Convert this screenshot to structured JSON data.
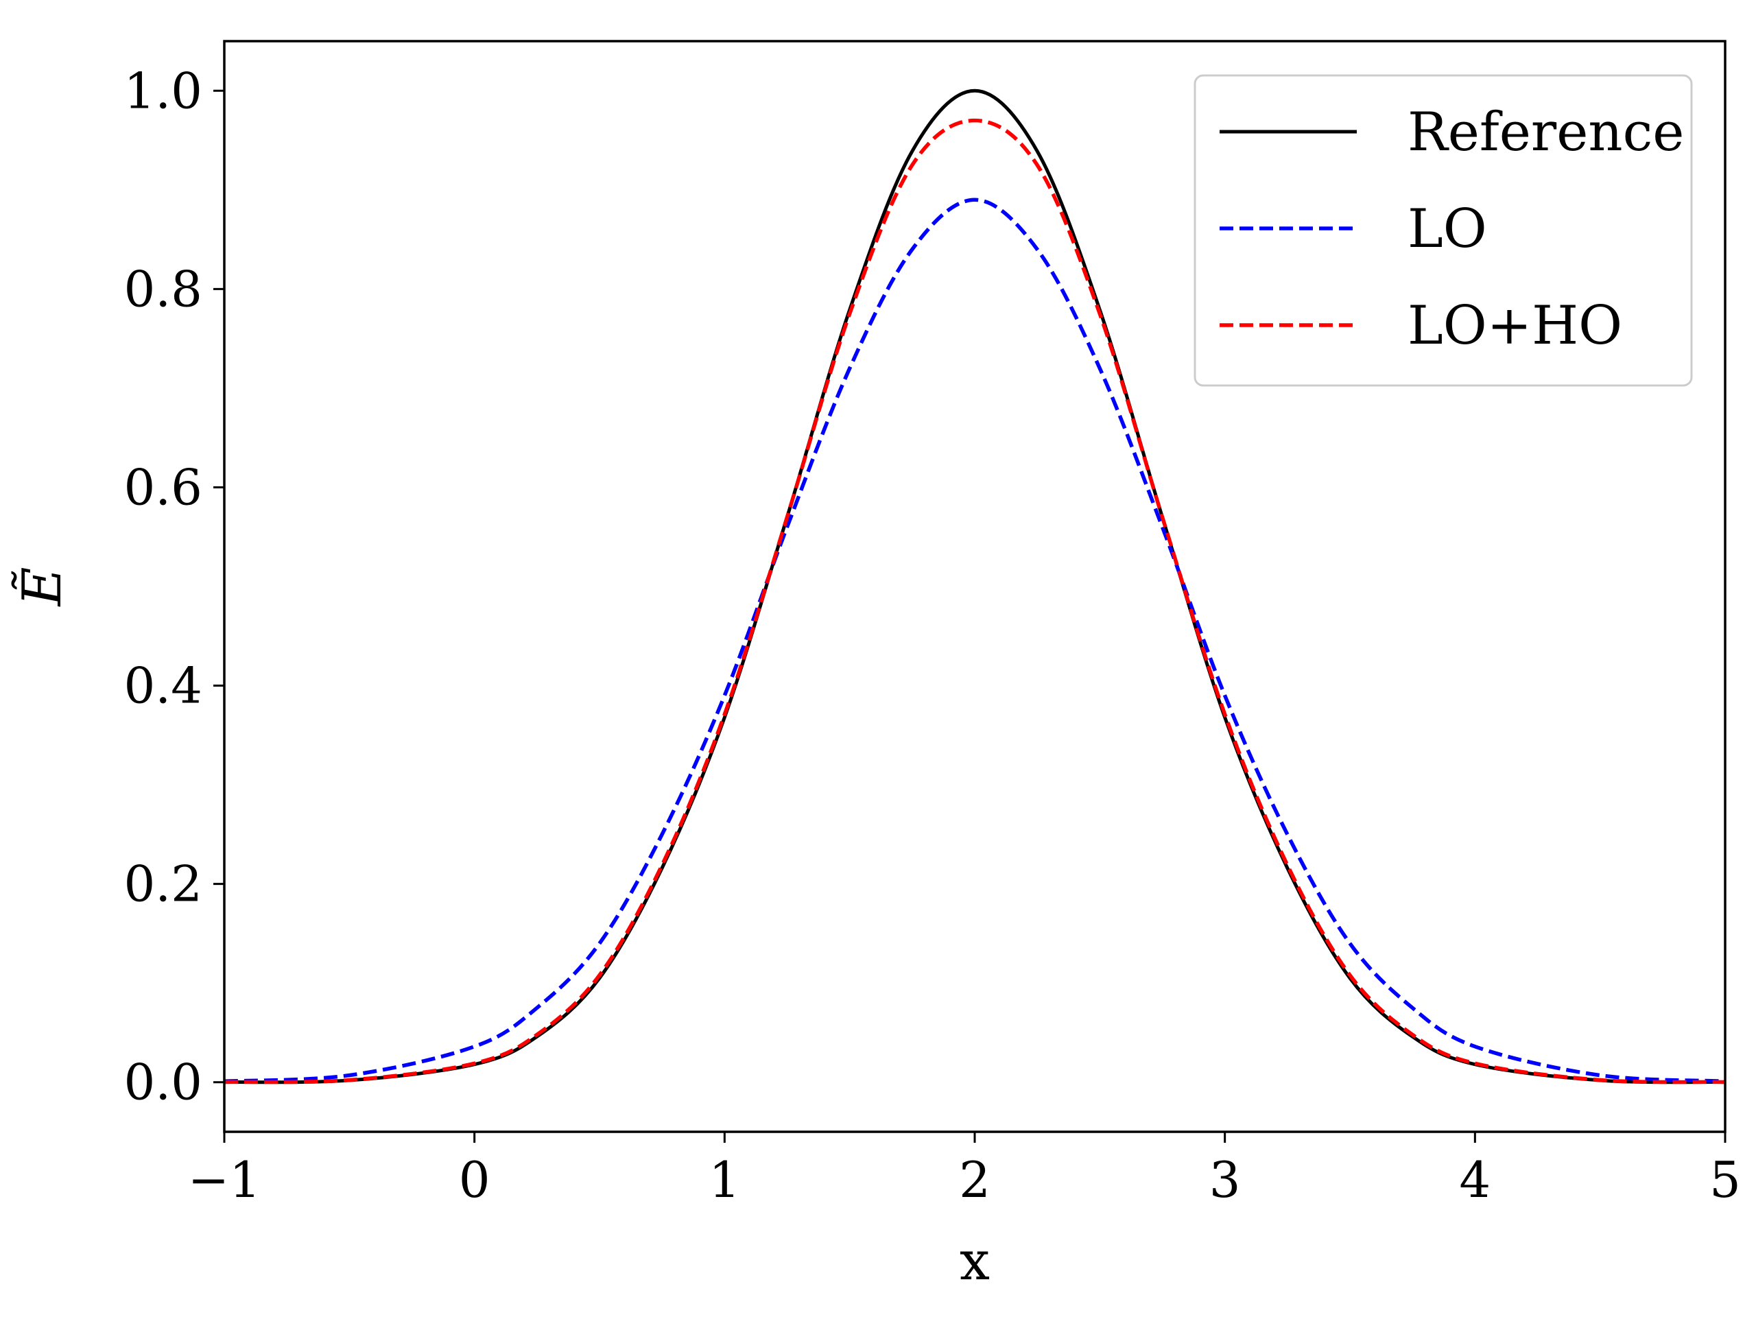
{
  "chart_data": {
    "type": "line",
    "title": "",
    "xlabel": "x",
    "ylabel": "Ẽ",
    "xlim": [
      -1,
      5
    ],
    "ylim": [
      -0.05,
      1.05
    ],
    "xticks": [
      -1,
      0,
      1,
      2,
      3,
      4,
      5
    ],
    "xtick_labels": [
      "−1",
      "0",
      "1",
      "2",
      "3",
      "4",
      "5"
    ],
    "yticks": [
      0.0,
      0.2,
      0.4,
      0.6,
      0.8,
      1.0
    ],
    "ytick_labels": [
      "0.0",
      "0.2",
      "0.4",
      "0.6",
      "0.8",
      "1.0"
    ],
    "grid": false,
    "legend_position": "top-right",
    "x": [
      -1.0,
      -0.5,
      0.0,
      0.25,
      0.5,
      0.75,
      1.0,
      1.25,
      1.5,
      1.75,
      2.0,
      2.25,
      2.5,
      2.75,
      3.0,
      3.25,
      3.5,
      3.75,
      4.0,
      4.5,
      5.0
    ],
    "series": [
      {
        "name": "Reference",
        "color": "#000000",
        "style": "solid",
        "values": [
          0.0001,
          0.0019,
          0.018,
          0.046,
          0.105,
          0.216,
          0.368,
          0.57,
          0.779,
          0.939,
          1.0,
          0.939,
          0.779,
          0.57,
          0.368,
          0.216,
          0.105,
          0.046,
          0.018,
          0.0019,
          0.0001
        ]
      },
      {
        "name": "LO",
        "color": "#0000ff",
        "style": "dashed",
        "values": [
          0.001,
          0.007,
          0.036,
          0.075,
          0.14,
          0.25,
          0.39,
          0.56,
          0.72,
          0.84,
          0.89,
          0.84,
          0.72,
          0.56,
          0.39,
          0.25,
          0.14,
          0.075,
          0.036,
          0.007,
          0.001
        ]
      },
      {
        "name": "LO+HO",
        "color": "#ff0000",
        "style": "dashed",
        "values": [
          0.0002,
          0.0022,
          0.019,
          0.048,
          0.108,
          0.219,
          0.371,
          0.57,
          0.775,
          0.925,
          0.97,
          0.925,
          0.775,
          0.57,
          0.371,
          0.219,
          0.108,
          0.048,
          0.019,
          0.0022,
          0.0002
        ]
      }
    ]
  }
}
